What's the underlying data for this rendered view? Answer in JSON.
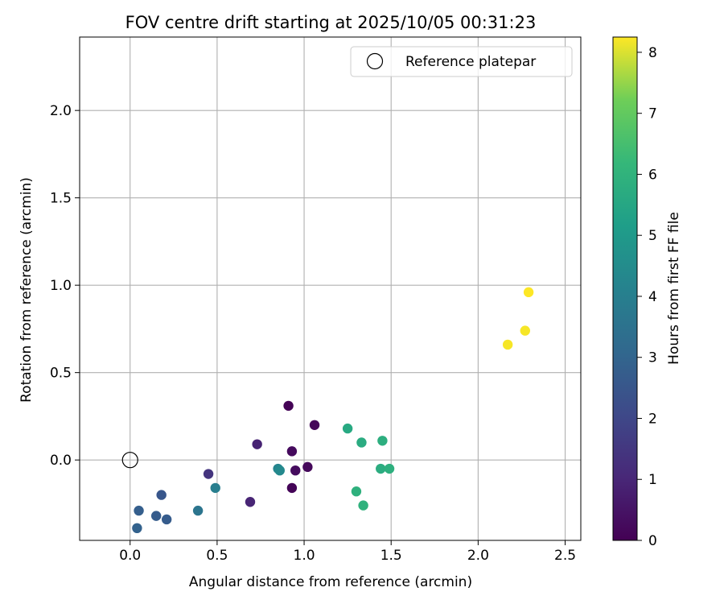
{
  "chart_data": {
    "type": "scatter",
    "title": "FOV centre drift starting at 2025/10/05 00:31:23",
    "xlabel": "Angular distance from reference (arcmin)",
    "ylabel": "Rotation from reference (arcmin)",
    "xlim": [
      -0.29,
      2.59
    ],
    "ylim": [
      -0.46,
      2.42
    ],
    "xticks": [
      0.0,
      0.5,
      1.0,
      1.5,
      2.0,
      2.5
    ],
    "xtick_labels": [
      "0.0",
      "0.5",
      "1.0",
      "1.5",
      "2.0",
      "2.5"
    ],
    "yticks": [
      0.0,
      0.5,
      1.0,
      1.5,
      2.0
    ],
    "ytick_labels": [
      "0.0",
      "0.5",
      "1.0",
      "1.5",
      "2.0"
    ],
    "grid": true,
    "legend": {
      "position": "top-right",
      "entries": [
        "Reference platepar"
      ]
    },
    "reference_point": {
      "x": 0.0,
      "y": 0.0,
      "label": "Reference platepar"
    },
    "colorbar": {
      "label": "Hours from first FF file",
      "range": [
        0,
        8.25
      ],
      "ticks": [
        0,
        1,
        2,
        3,
        4,
        5,
        6,
        7,
        8
      ],
      "tick_labels": [
        "0",
        "1",
        "2",
        "3",
        "4",
        "5",
        "6",
        "7",
        "8"
      ],
      "colormap": "viridis"
    },
    "points": [
      {
        "x": 0.91,
        "y": 0.31,
        "hours": 0.05
      },
      {
        "x": 1.06,
        "y": 0.2,
        "hours": 0.15
      },
      {
        "x": 0.93,
        "y": 0.05,
        "hours": 0.25
      },
      {
        "x": 0.95,
        "y": -0.06,
        "hours": 0.3
      },
      {
        "x": 1.02,
        "y": -0.04,
        "hours": 0.2
      },
      {
        "x": 0.93,
        "y": -0.16,
        "hours": 0.1
      },
      {
        "x": 0.73,
        "y": 0.09,
        "hours": 0.9
      },
      {
        "x": 0.69,
        "y": -0.24,
        "hours": 0.95
      },
      {
        "x": 0.45,
        "y": -0.08,
        "hours": 1.4
      },
      {
        "x": 0.18,
        "y": -0.2,
        "hours": 2.5
      },
      {
        "x": 0.05,
        "y": -0.29,
        "hours": 2.8
      },
      {
        "x": 0.15,
        "y": -0.32,
        "hours": 2.7
      },
      {
        "x": 0.21,
        "y": -0.34,
        "hours": 2.7
      },
      {
        "x": 0.04,
        "y": -0.39,
        "hours": 2.9
      },
      {
        "x": 0.39,
        "y": -0.29,
        "hours": 3.6
      },
      {
        "x": 0.49,
        "y": -0.16,
        "hours": 3.95
      },
      {
        "x": 0.85,
        "y": -0.05,
        "hours": 4.2
      },
      {
        "x": 0.86,
        "y": -0.06,
        "hours": 4.4
      },
      {
        "x": 1.25,
        "y": 0.18,
        "hours": 5.6
      },
      {
        "x": 1.33,
        "y": 0.1,
        "hours": 5.7
      },
      {
        "x": 1.45,
        "y": 0.11,
        "hours": 5.8
      },
      {
        "x": 1.44,
        "y": -0.05,
        "hours": 5.75
      },
      {
        "x": 1.49,
        "y": -0.05,
        "hours": 5.85
      },
      {
        "x": 1.3,
        "y": -0.18,
        "hours": 5.9
      },
      {
        "x": 1.34,
        "y": -0.26,
        "hours": 5.95
      },
      {
        "x": 2.17,
        "y": 0.66,
        "hours": 8.2
      },
      {
        "x": 2.27,
        "y": 0.74,
        "hours": 8.2
      },
      {
        "x": 2.29,
        "y": 0.96,
        "hours": 8.25
      }
    ]
  }
}
